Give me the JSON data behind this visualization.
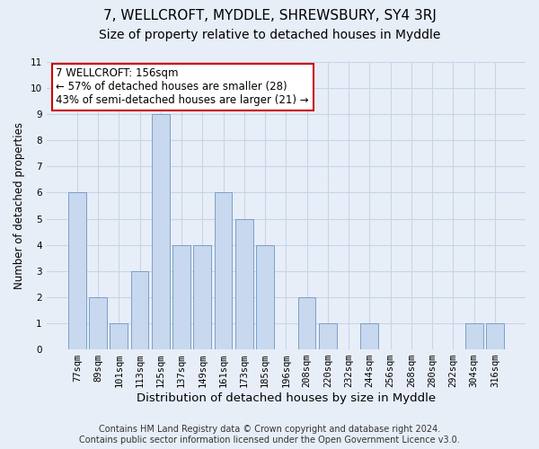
{
  "title": "7, WELLCROFT, MYDDLE, SHREWSBURY, SY4 3RJ",
  "subtitle": "Size of property relative to detached houses in Myddle",
  "xlabel": "Distribution of detached houses by size in Myddle",
  "ylabel": "Number of detached properties",
  "bar_color": "#c8d8ee",
  "bar_edge_color": "#7aa0c8",
  "categories": [
    "77sqm",
    "89sqm",
    "101sqm",
    "113sqm",
    "125sqm",
    "137sqm",
    "149sqm",
    "161sqm",
    "173sqm",
    "185sqm",
    "196sqm",
    "208sqm",
    "220sqm",
    "232sqm",
    "244sqm",
    "256sqm",
    "268sqm",
    "280sqm",
    "292sqm",
    "304sqm",
    "316sqm"
  ],
  "values": [
    6,
    2,
    1,
    3,
    9,
    4,
    4,
    6,
    5,
    4,
    0,
    2,
    1,
    0,
    1,
    0,
    0,
    0,
    0,
    1,
    1
  ],
  "ylim": [
    0,
    11
  ],
  "yticks": [
    0,
    1,
    2,
    3,
    4,
    5,
    6,
    7,
    8,
    9,
    10,
    11
  ],
  "annotation_title": "7 WELLCROFT: 156sqm",
  "annotation_line1": "← 57% of detached houses are smaller (28)",
  "annotation_line2": "43% of semi-detached houses are larger (21) →",
  "annotation_box_color": "#ffffff",
  "annotation_box_edge": "#cc0000",
  "grid_color": "#c8d4e8",
  "background_color": "#e8eef8",
  "plot_bg_color": "#e8eef8",
  "footer1": "Contains HM Land Registry data © Crown copyright and database right 2024.",
  "footer2": "Contains public sector information licensed under the Open Government Licence v3.0.",
  "title_fontsize": 11,
  "subtitle_fontsize": 10,
  "xlabel_fontsize": 9.5,
  "ylabel_fontsize": 8.5,
  "tick_fontsize": 7.5,
  "annotation_fontsize": 8.5,
  "footer_fontsize": 7
}
